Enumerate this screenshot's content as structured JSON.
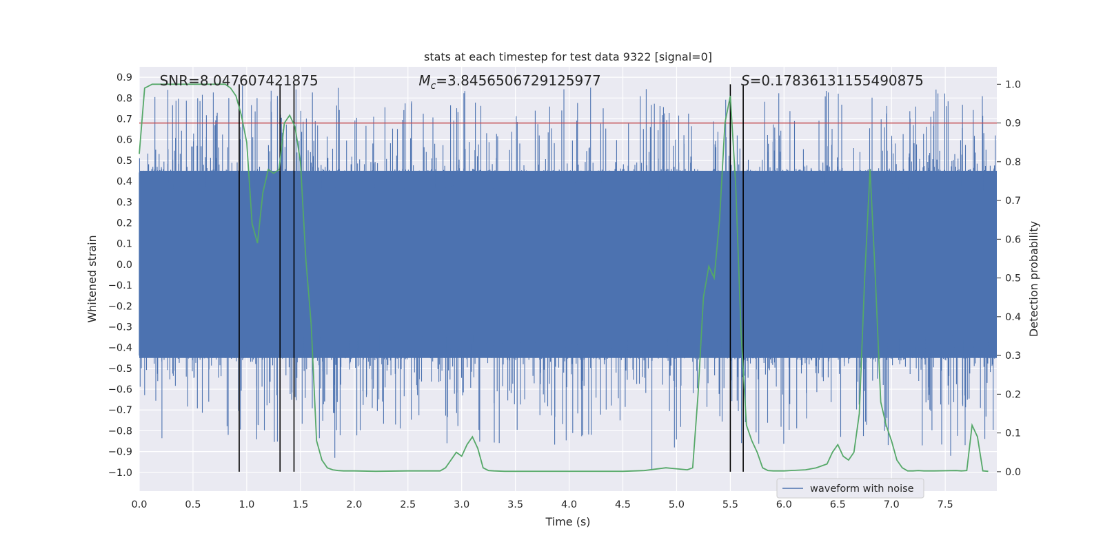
{
  "chart_data": {
    "type": "line",
    "title": "stats at each timestep for test data 9322 [signal=0]",
    "xlabel": "Time (s)",
    "ylabel_left": "Whitened strain",
    "ylabel_right": "Detection probability",
    "xlim": [
      0.0,
      7.98
    ],
    "ylim_left": [
      -1.09,
      0.95
    ],
    "ylim_right": [
      -0.05,
      1.045
    ],
    "x_ticks": [
      "0.0",
      "0.5",
      "1.0",
      "1.5",
      "2.0",
      "2.5",
      "3.0",
      "3.5",
      "4.0",
      "4.5",
      "5.0",
      "5.5",
      "6.0",
      "6.5",
      "7.0",
      "7.5"
    ],
    "y_left_ticks": [
      "0.9",
      "0.8",
      "0.7",
      "0.6",
      "0.5",
      "0.4",
      "0.3",
      "0.2",
      "0.1",
      "0.0",
      "−0.1",
      "−0.2",
      "−0.3",
      "−0.4",
      "−0.5",
      "−0.6",
      "−0.7",
      "−0.8",
      "−0.9",
      "−1.0"
    ],
    "y_right_ticks": [
      "1.0",
      "0.9",
      "0.8",
      "0.7",
      "0.6",
      "0.5",
      "0.4",
      "0.3",
      "0.2",
      "0.1",
      "0.0"
    ],
    "annotations": {
      "snr": "SNR=8.047607421875",
      "mc_symbol": "M",
      "mc_subscript": "c",
      "mc_value": "=3.8456506729125977",
      "s_symbol": "S",
      "s_value": "=0.17836131155490875"
    },
    "threshold": {
      "value": 0.9,
      "axis": "right",
      "color": "#c44e52"
    },
    "vertical_markers": [
      0.93,
      1.31,
      1.44,
      5.5,
      5.62
    ],
    "series": [
      {
        "name": "waveform with noise",
        "axis": "left",
        "color": "#4c72b0",
        "style": "dense noise, band about ±0.45 with spikes to about +0.85 / −0.99"
      },
      {
        "name": "detection probability",
        "axis": "right",
        "color": "#55a868",
        "x": [
          0.0,
          0.05,
          0.12,
          0.2,
          0.4,
          0.6,
          0.8,
          0.85,
          0.9,
          0.95,
          1.0,
          1.05,
          1.1,
          1.15,
          1.2,
          1.25,
          1.3,
          1.35,
          1.4,
          1.45,
          1.5,
          1.55,
          1.6,
          1.65,
          1.7,
          1.75,
          1.8,
          1.85,
          1.9,
          2.0,
          2.2,
          2.5,
          2.8,
          2.85,
          2.9,
          2.95,
          3.0,
          3.05,
          3.1,
          3.15,
          3.2,
          3.25,
          3.3,
          3.4,
          3.5,
          3.8,
          4.0,
          4.5,
          4.7,
          4.9,
          5.1,
          5.15,
          5.2,
          5.25,
          5.3,
          5.35,
          5.4,
          5.45,
          5.5,
          5.55,
          5.6,
          5.65,
          5.7,
          5.75,
          5.8,
          5.85,
          5.9,
          5.95,
          6.0,
          6.2,
          6.3,
          6.4,
          6.45,
          6.5,
          6.55,
          6.6,
          6.65,
          6.7,
          6.75,
          6.8,
          6.85,
          6.9,
          6.95,
          7.0,
          7.05,
          7.1,
          7.15,
          7.2,
          7.25,
          7.3,
          7.4,
          7.6,
          7.65,
          7.7,
          7.75,
          7.8,
          7.85,
          7.9
        ],
        "y": [
          0.82,
          0.99,
          1.0,
          1.0,
          1.0,
          1.0,
          1.0,
          0.99,
          0.97,
          0.92,
          0.85,
          0.64,
          0.59,
          0.72,
          0.78,
          0.77,
          0.78,
          0.9,
          0.92,
          0.89,
          0.8,
          0.55,
          0.38,
          0.08,
          0.03,
          0.01,
          0.005,
          0.003,
          0.002,
          0.002,
          0.001,
          0.002,
          0.002,
          0.01,
          0.03,
          0.05,
          0.04,
          0.07,
          0.09,
          0.06,
          0.01,
          0.003,
          0.002,
          0.001,
          0.001,
          0.001,
          0.001,
          0.001,
          0.003,
          0.01,
          0.005,
          0.01,
          0.2,
          0.45,
          0.53,
          0.5,
          0.65,
          0.9,
          0.97,
          0.74,
          0.36,
          0.12,
          0.08,
          0.05,
          0.01,
          0.003,
          0.002,
          0.002,
          0.002,
          0.005,
          0.01,
          0.02,
          0.05,
          0.07,
          0.04,
          0.03,
          0.05,
          0.15,
          0.5,
          0.78,
          0.5,
          0.18,
          0.12,
          0.08,
          0.03,
          0.01,
          0.002,
          0.002,
          0.003,
          0.002,
          0.002,
          0.003,
          0.002,
          0.003,
          0.12,
          0.09,
          0.002,
          0.001
        ]
      }
    ],
    "legend": {
      "entries": [
        "waveform with noise"
      ],
      "placement": "lower-right"
    }
  }
}
